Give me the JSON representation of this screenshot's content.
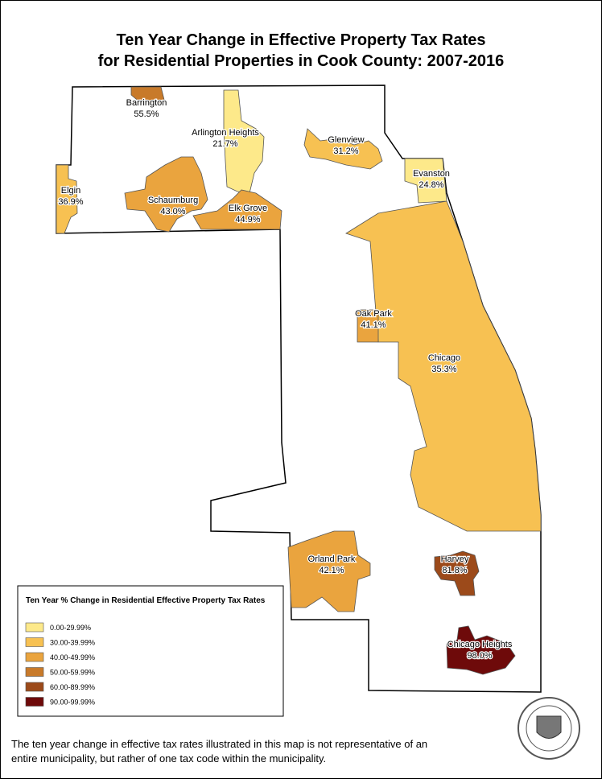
{
  "title": [
    "Ten Year Change in Effective Property Tax Rates",
    "for Residential Properties in Cook County: 2007-2016"
  ],
  "municipalities": [
    {
      "name": "Chicago",
      "change": "35.3%",
      "color": "#f7c152"
    },
    {
      "name": "Barrington",
      "change": "55.5%",
      "color": "#c87a2a"
    },
    {
      "name": "Arlington Heights",
      "change": "21.7%",
      "color": "#fde98a"
    },
    {
      "name": "Glenview",
      "change": "31.2%",
      "color": "#f7c152"
    },
    {
      "name": "Evanston",
      "change": "24.8%",
      "color": "#fde98a"
    },
    {
      "name": "Elgin",
      "change": "36.9%",
      "color": "#f7c152"
    },
    {
      "name": "Schaumburg",
      "change": "43.0%",
      "color": "#eaa43e"
    },
    {
      "name": "Elk Grove",
      "change": "44.9%",
      "color": "#eaa43e"
    },
    {
      "name": "Oak Park",
      "change": "41.1%",
      "color": "#eaa43e"
    },
    {
      "name": "Orland Park",
      "change": "42.1%",
      "color": "#eaa43e"
    },
    {
      "name": "Harvey",
      "change": "81.8%",
      "color": "#9c4a1a"
    },
    {
      "name": "Chicago Heights",
      "change": "98.0%",
      "color": "#6e0a0a"
    }
  ],
  "legend": {
    "title": "Ten Year % Change in Residential Effective Property Tax Rates",
    "items": [
      {
        "label": "0.00-29.99%",
        "color": "#fde98a"
      },
      {
        "label": "30.00-39.99%",
        "color": "#f7c152"
      },
      {
        "label": "40.00-49.99%",
        "color": "#eaa43e"
      },
      {
        "label": "50.00-59.99%",
        "color": "#c87a2a"
      },
      {
        "label": "60.00-89.99%",
        "color": "#9c4a1a"
      },
      {
        "label": "90.00-99.99%",
        "color": "#6e0a0a"
      }
    ]
  },
  "footnote": [
    "The ten year change in effective tax rates illustrated in this map is not representative of an",
    "entire municipality, but rather of one tax code within the municipality."
  ]
}
